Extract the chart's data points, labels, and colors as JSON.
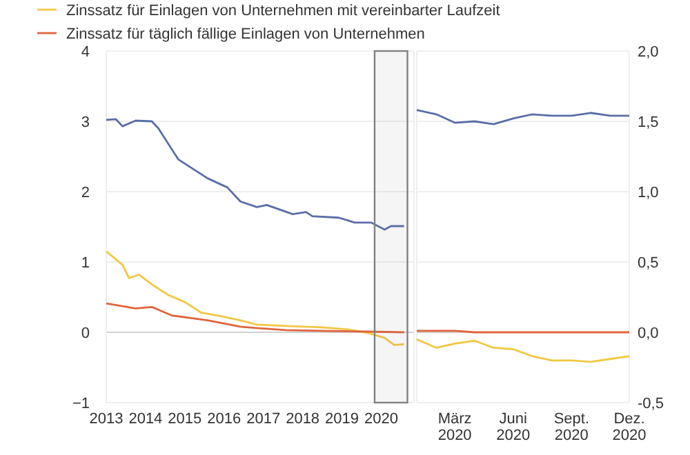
{
  "chart_data": [
    {
      "type": "line",
      "xlim": [
        "2013-01",
        "2020-11"
      ],
      "xticks": [
        "2013",
        "2014",
        "2015",
        "2016",
        "2017",
        "2018",
        "2019",
        "2020"
      ],
      "ylim": [
        -1,
        4
      ],
      "yticks": [
        {
          "value": -1,
          "label": "−1"
        },
        0,
        1,
        2,
        3,
        4
      ],
      "grid": "y",
      "legend": "top",
      "bands": [
        {
          "axis": "x",
          "from": "2019-11",
          "to": "2020-09",
          "color": "#808080"
        }
      ],
      "series": [
        {
          "color": "#5a6ea6",
          "x": [
            "2013-01",
            "2013-04",
            "2013-06",
            "2013-10",
            "2014-03",
            "2014-05",
            "2014-11",
            "2015-04",
            "2015-08",
            "2016-02",
            "2016-06",
            "2016-11",
            "2017-02",
            "2017-10",
            "2018-02",
            "2018-04",
            "2018-12",
            "2019-05",
            "2019-10",
            "2020-02",
            "2020-04",
            "2020-08"
          ],
          "values": [
            3.02,
            3.03,
            2.93,
            3.01,
            3.0,
            2.9,
            2.46,
            2.31,
            2.19,
            2.06,
            1.86,
            1.78,
            1.81,
            1.68,
            1.71,
            1.65,
            1.63,
            1.56,
            1.56,
            1.46,
            1.51,
            1.51
          ]
        },
        {
          "name": "Zinssatz für Einlagen von Unternehmen mit vereinbarter Laufzeit",
          "color": "#f2c744",
          "x": [
            "2013-01",
            "2013-06",
            "2013-08",
            "2013-11",
            "2014-03",
            "2014-08",
            "2015-01",
            "2015-06",
            "2015-12",
            "2016-06",
            "2016-11",
            "2017-08",
            "2018-07",
            "2019-03",
            "2019-09",
            "2020-02",
            "2020-05",
            "2020-08"
          ],
          "values": [
            1.15,
            0.96,
            0.77,
            0.82,
            0.68,
            0.53,
            0.43,
            0.28,
            0.23,
            0.17,
            0.11,
            0.09,
            0.07,
            0.04,
            -0.01,
            -0.08,
            -0.18,
            -0.17
          ]
        },
        {
          "name": "Zinssatz für täglich fällige Einlagen von Unternehmen",
          "color": "#e0643c",
          "x": [
            "2013-01",
            "2013-10",
            "2014-03",
            "2014-09",
            "2015-08",
            "2016-06",
            "2016-11",
            "2017-08",
            "2018-07",
            "2019-09",
            "2020-08"
          ],
          "values": [
            0.41,
            0.34,
            0.36,
            0.24,
            0.17,
            0.08,
            0.06,
            0.03,
            0.02,
            0.01,
            0.0
          ]
        }
      ]
    },
    {
      "type": "line",
      "xlim": [
        "2020-01",
        "2020-12"
      ],
      "xticks": [
        {
          "value": "2020-03",
          "label": "März 2020"
        },
        {
          "value": "2020-06",
          "label": "Juni 2020"
        },
        {
          "value": "2020-09",
          "label": "Sept. 2020"
        },
        {
          "value": "2020-12",
          "label": "Dez. 2020"
        }
      ],
      "y2lim": [
        -0.5,
        2.0
      ],
      "y2ticks": [
        {
          "value": -0.5,
          "label": "-0,5"
        },
        {
          "value": 0,
          "label": "0,0"
        },
        {
          "value": 0.5,
          "label": "0,5"
        },
        {
          "value": 1,
          "label": "1,0"
        },
        {
          "value": 1.5,
          "label": "1,5"
        },
        {
          "value": 2,
          "label": "2,0"
        }
      ],
      "grid": "y",
      "series": [
        {
          "axis": "y2",
          "color": "#5a6ea6",
          "x": [
            "2020-01",
            "2020-02",
            "2020-03",
            "2020-04",
            "2020-05",
            "2020-06",
            "2020-07",
            "2020-08",
            "2020-09",
            "2020-10",
            "2020-11",
            "2020-12"
          ],
          "values": [
            1.58,
            1.55,
            1.49,
            1.5,
            1.48,
            1.52,
            1.55,
            1.54,
            1.54,
            1.56,
            1.54,
            1.54
          ]
        },
        {
          "axis": "y2",
          "color": "#f2c744",
          "x": [
            "2020-01",
            "2020-02",
            "2020-03",
            "2020-04",
            "2020-05",
            "2020-06",
            "2020-07",
            "2020-08",
            "2020-09",
            "2020-10",
            "2020-11",
            "2020-12"
          ],
          "values": [
            -0.05,
            -0.11,
            -0.08,
            -0.06,
            -0.11,
            -0.12,
            -0.17,
            -0.2,
            -0.2,
            -0.21,
            -0.19,
            -0.17
          ]
        },
        {
          "axis": "y2",
          "color": "#e0643c",
          "x": [
            "2020-01",
            "2020-02",
            "2020-03",
            "2020-04",
            "2020-05",
            "2020-06",
            "2020-07",
            "2020-08",
            "2020-09",
            "2020-10",
            "2020-11",
            "2020-12"
          ],
          "values": [
            0.01,
            0.01,
            0.01,
            0.0,
            0.0,
            0.0,
            0.0,
            0.0,
            0.0,
            0.0,
            0.0,
            0.0
          ]
        }
      ]
    }
  ]
}
